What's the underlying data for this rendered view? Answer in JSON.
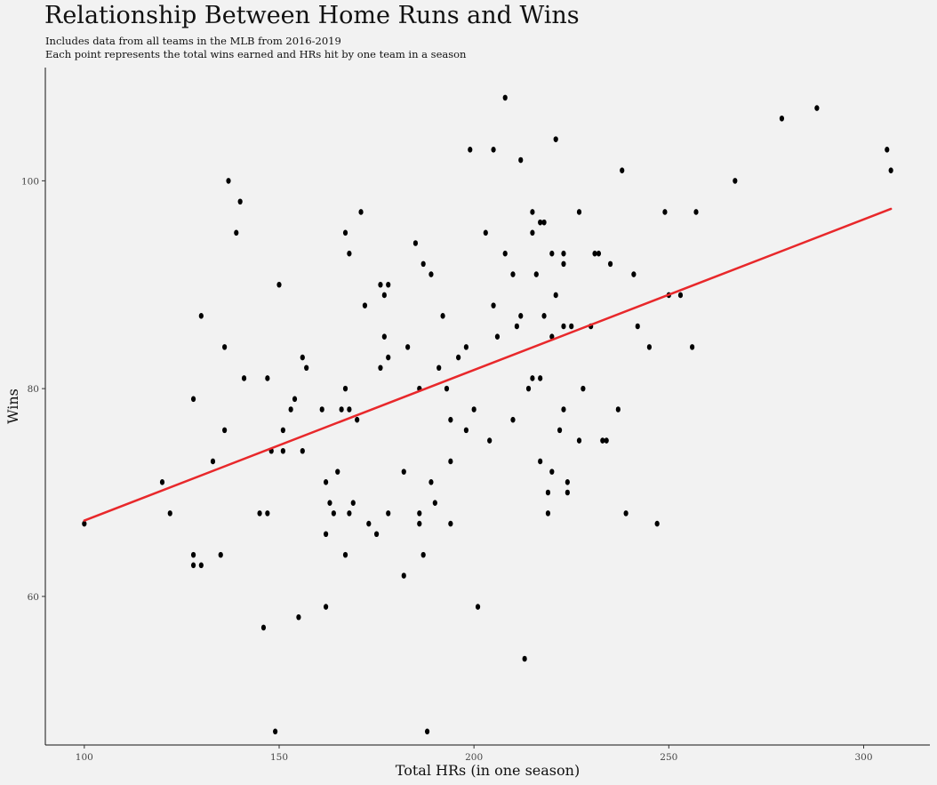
{
  "chart_data": {
    "type": "scatter",
    "title": "Relationship Between Home Runs and Wins",
    "subtitle": [
      "Includes data from all teams in the MLB from 2016-2019",
      "Each point represents the total wins earned and HRs hit by one team in a season"
    ],
    "xlabel": "Total HRs (in one season)",
    "ylabel": "Wins",
    "xlim": [
      90,
      317
    ],
    "ylim": [
      45.7,
      110.9
    ],
    "xticks": [
      100,
      150,
      200,
      250,
      300
    ],
    "yticks": [
      60,
      80,
      100
    ],
    "grid": false,
    "colors": {
      "points": "#000000",
      "trend_line": "#e8282b",
      "background": "#f2f2f2"
    },
    "trend_line": {
      "x": [
        100,
        307
      ],
      "y": [
        67.3,
        97.3
      ]
    },
    "points": [
      [
        100,
        67
      ],
      [
        120,
        71
      ],
      [
        122,
        68
      ],
      [
        128,
        79
      ],
      [
        128,
        64
      ],
      [
        128,
        63
      ],
      [
        130,
        87
      ],
      [
        130,
        63
      ],
      [
        133,
        73
      ],
      [
        135,
        64
      ],
      [
        136,
        84
      ],
      [
        136,
        76
      ],
      [
        137,
        100
      ],
      [
        139,
        95
      ],
      [
        140,
        98
      ],
      [
        141,
        81
      ],
      [
        145,
        68
      ],
      [
        146,
        57
      ],
      [
        147,
        68
      ],
      [
        147,
        81
      ],
      [
        148,
        74
      ],
      [
        149,
        47
      ],
      [
        150,
        90
      ],
      [
        151,
        76
      ],
      [
        151,
        74
      ],
      [
        153,
        78
      ],
      [
        154,
        79
      ],
      [
        155,
        58
      ],
      [
        156,
        74
      ],
      [
        156,
        83
      ],
      [
        157,
        82
      ],
      [
        161,
        78
      ],
      [
        162,
        71
      ],
      [
        162,
        66
      ],
      [
        162,
        59
      ],
      [
        163,
        69
      ],
      [
        164,
        68
      ],
      [
        165,
        72
      ],
      [
        166,
        78
      ],
      [
        167,
        64
      ],
      [
        167,
        95
      ],
      [
        167,
        80
      ],
      [
        168,
        78
      ],
      [
        168,
        68
      ],
      [
        168,
        93
      ],
      [
        169,
        69
      ],
      [
        170,
        77
      ],
      [
        171,
        97
      ],
      [
        172,
        88
      ],
      [
        173,
        67
      ],
      [
        175,
        66
      ],
      [
        176,
        90
      ],
      [
        176,
        82
      ],
      [
        177,
        89
      ],
      [
        177,
        85
      ],
      [
        178,
        90
      ],
      [
        178,
        83
      ],
      [
        178,
        68
      ],
      [
        182,
        62
      ],
      [
        182,
        72
      ],
      [
        183,
        84
      ],
      [
        185,
        94
      ],
      [
        186,
        80
      ],
      [
        186,
        68
      ],
      [
        186,
        67
      ],
      [
        187,
        92
      ],
      [
        187,
        64
      ],
      [
        188,
        47
      ],
      [
        189,
        91
      ],
      [
        189,
        71
      ],
      [
        190,
        69
      ],
      [
        191,
        82
      ],
      [
        192,
        87
      ],
      [
        193,
        80
      ],
      [
        194,
        77
      ],
      [
        194,
        67
      ],
      [
        194,
        73
      ],
      [
        196,
        83
      ],
      [
        198,
        76
      ],
      [
        198,
        84
      ],
      [
        199,
        103
      ],
      [
        200,
        78
      ],
      [
        201,
        59
      ],
      [
        203,
        95
      ],
      [
        204,
        75
      ],
      [
        205,
        103
      ],
      [
        205,
        88
      ],
      [
        206,
        85
      ],
      [
        208,
        108
      ],
      [
        208,
        93
      ],
      [
        210,
        91
      ],
      [
        210,
        77
      ],
      [
        211,
        86
      ],
      [
        212,
        102
      ],
      [
        212,
        87
      ],
      [
        213,
        54
      ],
      [
        214,
        80
      ],
      [
        215,
        97
      ],
      [
        215,
        95
      ],
      [
        215,
        81
      ],
      [
        216,
        91
      ],
      [
        217,
        73
      ],
      [
        217,
        81
      ],
      [
        217,
        96
      ],
      [
        218,
        96
      ],
      [
        218,
        87
      ],
      [
        219,
        70
      ],
      [
        219,
        68
      ],
      [
        220,
        93
      ],
      [
        220,
        85
      ],
      [
        220,
        72
      ],
      [
        221,
        104
      ],
      [
        221,
        89
      ],
      [
        222,
        76
      ],
      [
        223,
        93
      ],
      [
        223,
        92
      ],
      [
        223,
        86
      ],
      [
        223,
        78
      ],
      [
        224,
        71
      ],
      [
        224,
        70
      ],
      [
        225,
        86
      ],
      [
        227,
        97
      ],
      [
        227,
        75
      ],
      [
        228,
        80
      ],
      [
        230,
        86
      ],
      [
        231,
        93
      ],
      [
        232,
        93
      ],
      [
        233,
        75
      ],
      [
        234,
        75
      ],
      [
        235,
        92
      ],
      [
        237,
        78
      ],
      [
        238,
        101
      ],
      [
        239,
        68
      ],
      [
        241,
        91
      ],
      [
        242,
        86
      ],
      [
        245,
        84
      ],
      [
        247,
        67
      ],
      [
        249,
        97
      ],
      [
        250,
        89
      ],
      [
        253,
        89
      ],
      [
        256,
        84
      ],
      [
        257,
        97
      ],
      [
        267,
        100
      ],
      [
        279,
        106
      ],
      [
        288,
        107
      ],
      [
        306,
        103
      ],
      [
        307,
        101
      ]
    ]
  }
}
